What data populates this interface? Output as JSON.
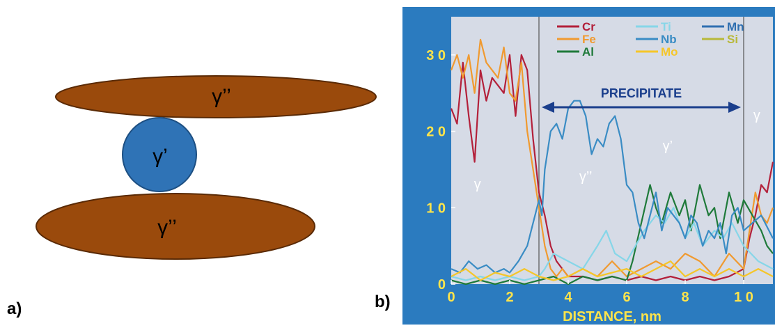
{
  "panel_a": {
    "label": "a)",
    "top_ellipse_label": "γ’’",
    "circle_label": "γ’",
    "bottom_ellipse_label": "γ’’",
    "colors": {
      "ellipse_fill": "#9a4a0c",
      "ellipse_stroke": "#5a2a05",
      "circle_fill": "#2f73b6",
      "circle_stroke": "#1d4f82"
    }
  },
  "panel_b": {
    "label": "b)",
    "region_labels": {
      "left": "γ",
      "middle": "γ’’",
      "right": "γ’",
      "far_right": "γ"
    },
    "arrow_label": "PRECIPITATE",
    "colors": {
      "frame": "#2b7bbf",
      "plot_bg": "#d6dbe6",
      "tick_text": "#ffe44a",
      "xlabel_text": "#ffe44a",
      "arrow": "#1a3e8c"
    }
  },
  "chart_data": {
    "type": "line",
    "title": "",
    "xlabel": "DISTANCE, nm",
    "ylabel": "",
    "xlim": [
      0,
      11
    ],
    "ylim": [
      0,
      35
    ],
    "x_ticks": [
      0,
      2,
      4,
      6,
      8,
      10
    ],
    "y_ticks": [
      0,
      10,
      20,
      30
    ],
    "x_tick_labels": [
      "0",
      "2",
      "4",
      "6",
      "8",
      "1 0"
    ],
    "y_tick_labels": [
      "0",
      "1 0",
      "2 0",
      "3 0"
    ],
    "grid": false,
    "legend_position": "top-center",
    "vlines_x": [
      3.0,
      10.0
    ],
    "series": [
      {
        "name": "Cr",
        "color": "#b3203a",
        "x": [
          0,
          0.2,
          0.4,
          0.6,
          0.8,
          1.0,
          1.2,
          1.4,
          1.6,
          1.8,
          2.0,
          2.2,
          2.4,
          2.6,
          2.8,
          3.0,
          3.2,
          3.4,
          3.6,
          3.8,
          4.0,
          4.5,
          5.0,
          5.5,
          6.0,
          6.5,
          7.0,
          7.5,
          8.0,
          8.5,
          9.0,
          9.5,
          10.0,
          10.2,
          10.4,
          10.6,
          10.8,
          11.0
        ],
        "values": [
          23,
          21,
          29,
          22,
          16,
          28,
          24,
          27,
          26,
          25,
          30,
          22,
          30,
          28,
          19,
          12,
          9,
          5,
          3,
          2,
          1,
          1,
          0.5,
          1,
          0.5,
          1,
          0.5,
          1,
          0.5,
          1,
          0.5,
          1,
          2,
          6,
          9,
          13,
          12,
          16
        ]
      },
      {
        "name": "Fe",
        "color": "#f09a30",
        "x": [
          0,
          0.2,
          0.4,
          0.6,
          0.8,
          1.0,
          1.2,
          1.4,
          1.6,
          1.8,
          2.0,
          2.2,
          2.4,
          2.6,
          2.8,
          3.0,
          3.2,
          3.4,
          3.6,
          3.8,
          4.0,
          4.5,
          5.0,
          5.5,
          6.0,
          6.5,
          7.0,
          7.5,
          8.0,
          8.5,
          9.0,
          9.5,
          10.0,
          10.2,
          10.4,
          10.6,
          10.8,
          11.0
        ],
        "values": [
          28,
          30,
          27,
          30,
          25,
          32,
          29,
          28,
          27,
          31,
          25,
          24,
          29,
          20,
          15,
          10,
          5,
          2,
          1,
          2,
          1,
          2,
          1,
          3,
          1,
          2,
          3,
          2,
          4,
          3,
          1,
          4,
          2,
          7,
          12,
          9,
          8,
          10
        ]
      },
      {
        "name": "Al",
        "color": "#1f7a3a",
        "x": [
          0,
          0.5,
          1.0,
          1.5,
          2.0,
          2.5,
          3.0,
          3.5,
          4.0,
          4.5,
          5.0,
          5.5,
          6.0,
          6.2,
          6.5,
          6.8,
          7.0,
          7.2,
          7.5,
          7.8,
          8.0,
          8.2,
          8.5,
          8.8,
          9.0,
          9.2,
          9.5,
          9.8,
          10.0,
          10.3,
          10.6,
          10.8,
          11.0
        ],
        "values": [
          0.5,
          0,
          0.5,
          0,
          0.5,
          0,
          0.5,
          1,
          0,
          1,
          0.5,
          1,
          0.5,
          3,
          8,
          13,
          10,
          8,
          12,
          9,
          11,
          7,
          13,
          9,
          10,
          6,
          12,
          8,
          11,
          9,
          7,
          5,
          4
        ]
      },
      {
        "name": "Ti",
        "color": "#86d6e8",
        "x": [
          0,
          0.5,
          1.0,
          1.5,
          2.0,
          2.5,
          3.0,
          3.2,
          3.5,
          4.0,
          4.5,
          5.0,
          5.3,
          5.6,
          6.0,
          6.3,
          6.6,
          7.0,
          7.3,
          7.6,
          8.0,
          8.3,
          8.6,
          9.0,
          9.3,
          9.6,
          10.0,
          10.5,
          11.0
        ],
        "values": [
          1,
          0.5,
          1,
          0.5,
          1,
          0.5,
          1,
          2,
          4,
          3,
          2,
          5,
          7,
          4,
          3,
          5,
          7,
          9,
          8,
          10,
          6,
          8,
          5,
          7,
          6,
          8,
          5,
          3,
          2
        ]
      },
      {
        "name": "Nb",
        "color": "#3a8cc4",
        "x": [
          0,
          0.3,
          0.6,
          0.9,
          1.2,
          1.5,
          1.8,
          2.0,
          2.3,
          2.6,
          2.8,
          3.0,
          3.1,
          3.2,
          3.4,
          3.6,
          3.8,
          4.0,
          4.2,
          4.4,
          4.6,
          4.8,
          5.0,
          5.2,
          5.4,
          5.6,
          5.8,
          6.0,
          6.2,
          6.4,
          6.6,
          6.8,
          7.0,
          7.2,
          7.4,
          7.6,
          7.8,
          8.0,
          8.2,
          8.4,
          8.6,
          8.8,
          9.0,
          9.2,
          9.4,
          9.6,
          9.8,
          10.0,
          10.3,
          10.6,
          11.0
        ],
        "values": [
          2,
          1.5,
          3,
          2,
          2.5,
          1.5,
          2,
          1.5,
          3,
          5,
          8,
          11,
          9,
          15,
          20,
          21,
          19,
          23,
          24,
          24,
          22,
          17,
          19,
          18,
          21,
          22,
          19,
          13,
          12,
          8,
          6,
          9,
          12,
          7,
          10,
          9,
          8,
          6,
          9,
          8,
          5,
          7,
          6,
          8,
          4,
          9,
          10,
          7,
          8,
          9,
          6
        ]
      },
      {
        "name": "Mo",
        "color": "#f5c62a",
        "x": [
          0,
          0.5,
          1.0,
          1.5,
          2.0,
          2.5,
          3.0,
          3.5,
          4.0,
          4.5,
          5.0,
          5.5,
          6.0,
          6.5,
          7.0,
          7.5,
          8.0,
          8.5,
          9.0,
          9.5,
          10.0,
          10.5,
          11.0
        ],
        "values": [
          1,
          2,
          0.5,
          1.5,
          1,
          2,
          1,
          0.5,
          1,
          2,
          1,
          1.5,
          2,
          1,
          2,
          3,
          1,
          2,
          1,
          2,
          1,
          2,
          1
        ]
      },
      {
        "name": "Mn",
        "color": "#2f6fb0",
        "x": [],
        "values": []
      },
      {
        "name": "Si",
        "color": "#b8b83a",
        "x": [],
        "values": []
      }
    ]
  }
}
